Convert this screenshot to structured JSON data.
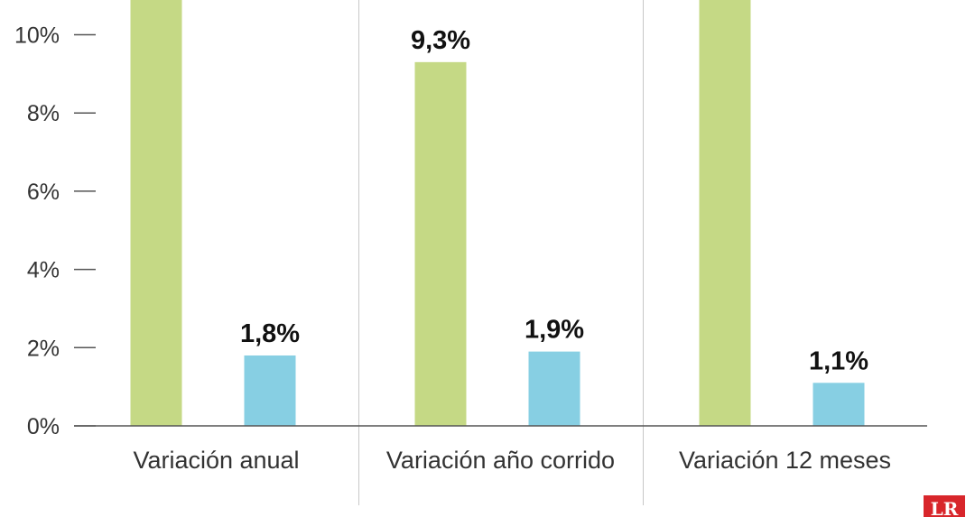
{
  "chart_data": {
    "type": "bar",
    "categories": [
      "Variación anual",
      "Variación año corrido",
      "Variación 12 meses"
    ],
    "series": [
      {
        "color": "#c5d985",
        "values": [
          11.5,
          9.3,
          11.5
        ],
        "labels": [
          "",
          "9,3%",
          ""
        ]
      },
      {
        "color": "#87cfe3",
        "values": [
          1.8,
          1.9,
          1.1
        ],
        "labels": [
          "1,8%",
          "1,9%",
          "1,1%"
        ]
      }
    ],
    "yticks": [
      {
        "value": 0,
        "label": "0%"
      },
      {
        "value": 2,
        "label": "2%"
      },
      {
        "value": 4,
        "label": "4%"
      },
      {
        "value": 6,
        "label": "6%"
      },
      {
        "value": 8,
        "label": "8%"
      },
      {
        "value": 10,
        "label": "10%"
      }
    ],
    "ylim": [
      0,
      10.9
    ],
    "grid": false,
    "title": "",
    "xlabel": "",
    "ylabel": ""
  },
  "logo": {
    "text": "LR",
    "color": "#d8262b"
  }
}
